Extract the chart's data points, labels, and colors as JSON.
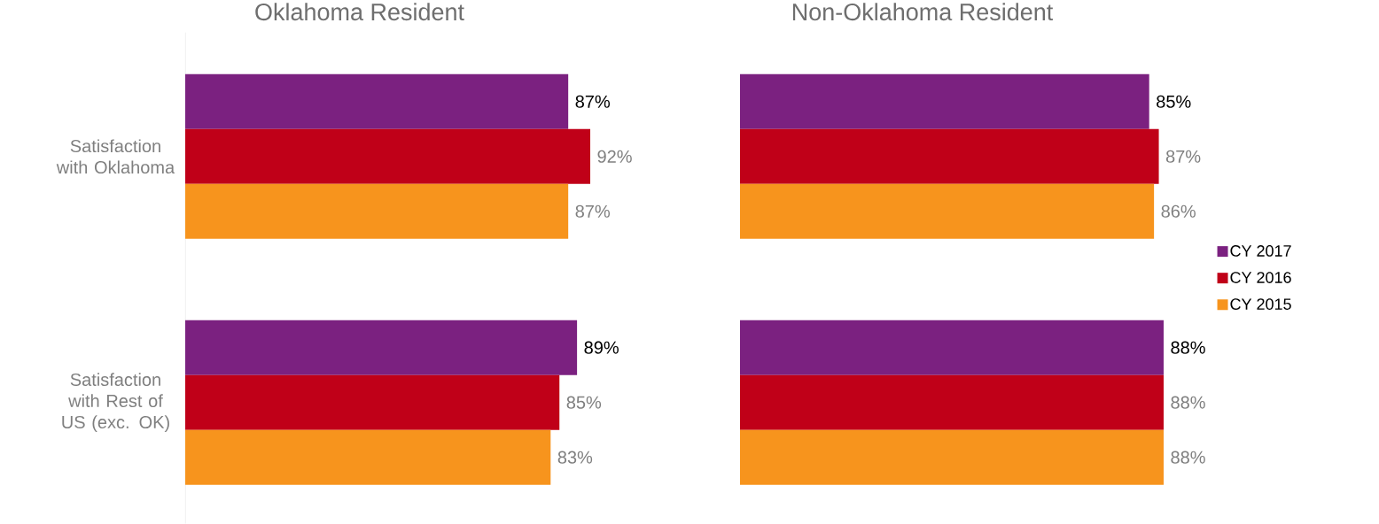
{
  "chart_data": [
    {
      "type": "bar",
      "orientation": "horizontal",
      "title": "Oklahoma Resident",
      "categories": [
        "Satisfaction with Oklahoma",
        "Satisfaction with Rest of US (exc. OK)"
      ],
      "tick_labels": "y",
      "legend": false,
      "series": [
        {
          "color": "#7b2180",
          "values": [
            87,
            89
          ],
          "value_labels": [
            "87%",
            "89%"
          ]
        },
        {
          "color": "#c00018",
          "values": [
            92,
            85
          ],
          "value_labels": [
            "92%",
            "85%"
          ]
        },
        {
          "color": "#f7941d",
          "values": [
            87,
            83
          ],
          "value_labels": [
            "87%",
            "83%"
          ]
        }
      ]
    },
    {
      "type": "bar",
      "orientation": "horizontal",
      "title": "Non-Oklahoma Resident",
      "categories": [
        null,
        null
      ],
      "tick_labels": false,
      "legend": "right",
      "series": [
        {
          "name": "CY 2017",
          "color": "#7b2180",
          "values": [
            85,
            88
          ],
          "value_labels": [
            "85%",
            "88%"
          ]
        },
        {
          "name": "CY 2016",
          "color": "#c00018",
          "values": [
            87,
            88
          ],
          "value_labels": [
            "87%",
            "88%"
          ]
        },
        {
          "name": "CY 2015",
          "color": "#f7941d",
          "values": [
            86,
            88
          ],
          "value_labels": [
            "86%",
            "88%"
          ]
        }
      ]
    }
  ]
}
